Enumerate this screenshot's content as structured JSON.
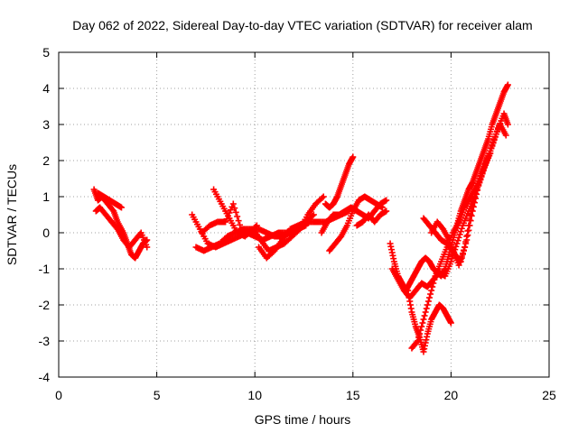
{
  "chart_data": {
    "type": "scatter",
    "title": "Day 062 of 2022, Sidereal Day-to-day VTEC variation (SDTVAR) for receiver alam",
    "xlabel": "GPS time / hours",
    "ylabel": "SDTVAR / TECUs",
    "xlim": [
      0,
      25
    ],
    "ylim": [
      -4,
      5
    ],
    "xticks": [
      0,
      5,
      10,
      15,
      20,
      25
    ],
    "yticks": [
      -4,
      -3,
      -2,
      -1,
      0,
      1,
      2,
      3,
      4,
      5
    ],
    "grid": true,
    "marker": "+",
    "marker_color": "#ff0000",
    "segments": [
      {
        "x": [
          1.8,
          2.0,
          2.2,
          2.5,
          2.8,
          3.0,
          3.3,
          3.5,
          3.7,
          3.9,
          4.1,
          4.3,
          4.5
        ],
        "y": [
          1.2,
          0.9,
          1.0,
          0.8,
          0.6,
          0.3,
          0.0,
          -0.3,
          -0.6,
          -0.7,
          -0.5,
          -0.3,
          -0.2
        ]
      },
      {
        "x": [
          1.9,
          2.1,
          2.4,
          2.7,
          3.0,
          3.3,
          3.6,
          3.9,
          4.2,
          4.5
        ],
        "y": [
          0.6,
          0.7,
          0.5,
          0.3,
          0.1,
          -0.2,
          -0.4,
          -0.2,
          0.0,
          -0.4
        ]
      },
      {
        "x": [
          2.0,
          2.3,
          2.6,
          2.9,
          3.2
        ],
        "y": [
          1.1,
          1.0,
          0.9,
          0.8,
          0.7
        ]
      },
      {
        "x": [
          6.8,
          7.2,
          7.6,
          8.0,
          8.4,
          8.8,
          9.2,
          9.6,
          10.0,
          10.4,
          10.8,
          11.2,
          11.6,
          12.0,
          12.4,
          12.8,
          13.2,
          13.6,
          14.0,
          14.4,
          14.8
        ],
        "y": [
          0.5,
          0.1,
          -0.3,
          -0.4,
          -0.3,
          -0.2,
          -0.1,
          0.0,
          -0.1,
          -0.2,
          -0.1,
          0.0,
          0.0,
          0.1,
          0.2,
          0.3,
          0.3,
          0.3,
          0.4,
          0.5,
          0.6
        ]
      },
      {
        "x": [
          7.0,
          7.4,
          7.8,
          8.2,
          8.6,
          9.0,
          9.4,
          9.8,
          10.2,
          10.6,
          11.0,
          11.4,
          11.8,
          12.2,
          12.6
        ],
        "y": [
          -0.4,
          -0.5,
          -0.4,
          -0.3,
          -0.1,
          0.0,
          0.1,
          0.1,
          0.1,
          0.0,
          -0.1,
          -0.1,
          0.0,
          0.1,
          0.2
        ]
      },
      {
        "x": [
          7.9,
          8.3,
          8.7,
          9.1,
          9.5,
          9.9,
          10.3,
          10.7,
          11.1,
          11.5,
          11.9,
          12.3,
          12.7,
          13.1,
          13.5
        ],
        "y": [
          1.2,
          0.8,
          0.4,
          0.0,
          -0.1,
          0.1,
          -0.2,
          -0.5,
          -0.4,
          -0.3,
          -0.1,
          0.1,
          0.5,
          0.8,
          1.0
        ]
      },
      {
        "x": [
          7.3,
          7.7,
          8.1,
          8.5,
          8.9,
          9.3,
          9.7,
          10.1
        ],
        "y": [
          0.0,
          0.2,
          0.3,
          0.3,
          0.8,
          0.1,
          0.0,
          0.2
        ]
      },
      {
        "x": [
          10.2,
          10.6,
          11.0,
          11.4,
          11.8,
          12.2,
          12.6,
          13.0
        ],
        "y": [
          -0.4,
          -0.7,
          -0.5,
          -0.2,
          0.1,
          0.2,
          0.3,
          0.5
        ]
      },
      {
        "x": [
          13.6,
          13.8,
          14.0,
          14.2,
          14.4,
          14.6,
          14.8,
          15.0
        ],
        "y": [
          0.8,
          0.7,
          0.8,
          1.0,
          1.3,
          1.6,
          1.9,
          2.1
        ]
      },
      {
        "x": [
          13.4,
          13.7,
          14.0,
          14.3,
          14.6,
          14.9,
          15.2,
          15.5,
          15.8,
          16.1,
          16.4,
          16.7
        ],
        "y": [
          0.0,
          0.3,
          0.5,
          0.5,
          0.6,
          0.7,
          0.6,
          0.5,
          0.4,
          0.6,
          0.8,
          0.9
        ]
      },
      {
        "x": [
          13.8,
          14.1,
          14.4,
          14.7,
          15.0,
          15.3,
          15.6,
          15.9,
          16.2,
          16.5
        ],
        "y": [
          -0.5,
          -0.3,
          -0.1,
          0.2,
          0.6,
          0.9,
          1.0,
          0.9,
          0.8,
          0.7
        ]
      },
      {
        "x": [
          15.2,
          15.5,
          15.8,
          16.1,
          16.4,
          16.7
        ],
        "y": [
          0.2,
          0.3,
          0.5,
          0.3,
          0.5,
          0.6
        ]
      },
      {
        "x": [
          16.9,
          17.1,
          17.3,
          17.5,
          17.7,
          17.9,
          18.1,
          18.3,
          18.5,
          18.7,
          18.9,
          19.1,
          19.3,
          19.5,
          19.7,
          19.9,
          20.1,
          20.3,
          20.5,
          20.7,
          20.9,
          21.1,
          21.3,
          21.5,
          21.7,
          21.9,
          22.1,
          22.3,
          22.5,
          22.7,
          22.9
        ],
        "y": [
          -0.3,
          -0.8,
          -1.2,
          -1.4,
          -1.6,
          -1.4,
          -1.2,
          -1.0,
          -0.8,
          -0.7,
          -0.8,
          -1.0,
          -1.1,
          -1.2,
          -1.0,
          -0.6,
          -0.2,
          0.2,
          0.6,
          0.9,
          1.2,
          1.4,
          1.7,
          2.0,
          2.3,
          2.6,
          3.0,
          3.3,
          3.6,
          3.9,
          4.1
        ]
      },
      {
        "x": [
          17.0,
          17.3,
          17.6,
          17.9,
          18.2,
          18.5,
          18.8,
          19.1,
          19.4,
          19.7,
          20.0,
          20.3,
          20.6,
          20.9,
          21.2,
          21.5,
          21.8,
          22.1,
          22.4,
          22.7,
          22.9
        ],
        "y": [
          -1.0,
          -1.3,
          -1.6,
          -1.8,
          -1.6,
          -1.4,
          -1.5,
          -1.3,
          -1.1,
          -1.2,
          -0.8,
          -0.3,
          0.2,
          0.6,
          1.0,
          1.5,
          2.0,
          2.4,
          2.9,
          3.3,
          3.0
        ]
      },
      {
        "x": [
          17.8,
          18.0,
          18.2,
          18.4,
          18.6,
          18.8,
          19.0,
          19.2,
          19.4,
          19.6,
          19.8,
          20.0
        ],
        "y": [
          -1.6,
          -2.2,
          -2.6,
          -2.9,
          -3.3,
          -2.8,
          -2.4,
          -2.2,
          -2.0,
          -2.1,
          -2.3,
          -2.5
        ]
      },
      {
        "x": [
          18.0,
          18.3,
          18.6,
          18.9,
          19.2,
          19.5,
          19.8,
          20.1,
          20.4,
          20.7,
          21.0,
          21.3,
          21.6,
          21.9,
          22.2,
          22.5,
          22.8
        ],
        "y": [
          -3.2,
          -3.0,
          -2.4,
          -1.8,
          -1.2,
          -0.8,
          -0.4,
          0.0,
          0.3,
          0.7,
          1.0,
          1.3,
          1.7,
          2.1,
          2.6,
          3.0,
          2.7
        ]
      },
      {
        "x": [
          18.6,
          18.9,
          19.2,
          19.5,
          19.8,
          20.1,
          20.4,
          20.7,
          21.0,
          21.3
        ],
        "y": [
          0.4,
          0.2,
          0.0,
          -0.2,
          -0.3,
          -0.5,
          -0.9,
          -0.4,
          0.5,
          1.2
        ]
      },
      {
        "x": [
          19.0,
          19.3,
          19.6,
          19.9,
          20.2,
          20.5,
          20.8,
          21.1,
          21.4,
          21.7,
          22.0
        ],
        "y": [
          0.0,
          0.3,
          0.1,
          -0.2,
          -0.6,
          -0.8,
          -0.2,
          0.6,
          1.3,
          1.8,
          2.2
        ]
      }
    ]
  }
}
